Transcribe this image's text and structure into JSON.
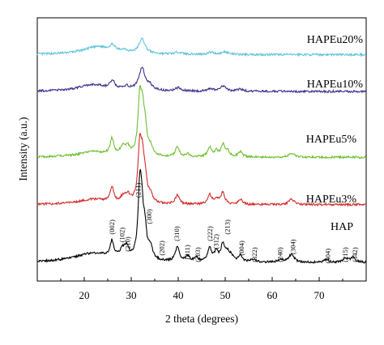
{
  "chart_data": {
    "type": "line",
    "title": "",
    "xlabel": "2 theta (degrees)",
    "ylabel": "Intensity (a.u.)",
    "xlim": [
      10,
      80
    ],
    "xticks": [
      20,
      30,
      40,
      50,
      60,
      70
    ],
    "ylim": [
      0,
      1
    ],
    "yticks_shown": false,
    "grid": false,
    "legend": "none (labels placed next to each trace)",
    "series": [
      {
        "name": "HAPEu20%",
        "color": "#5ec4d8",
        "offset": 0.84,
        "baseline": 0.02,
        "noise": 0.004,
        "peaks": [
          {
            "x": 23.0,
            "h": 0.03,
            "w": 4.0
          },
          {
            "x": 26.0,
            "h": 0.02,
            "w": 0.6
          },
          {
            "x": 28.5,
            "h": 0.01,
            "w": 0.8
          },
          {
            "x": 32.3,
            "h": 0.055,
            "w": 0.8
          },
          {
            "x": 40.0,
            "h": 0.008,
            "w": 0.8
          },
          {
            "x": 47.0,
            "h": 0.008,
            "w": 0.8
          },
          {
            "x": 50.0,
            "h": 0.01,
            "w": 0.8
          }
        ]
      },
      {
        "name": "HAPEu10%",
        "color": "#3b2f8c",
        "offset": 0.7,
        "baseline": 0.02,
        "noise": 0.004,
        "peaks": [
          {
            "x": 22.0,
            "h": 0.025,
            "w": 4.0
          },
          {
            "x": 26.0,
            "h": 0.03,
            "w": 0.6
          },
          {
            "x": 29.0,
            "h": 0.012,
            "w": 0.8
          },
          {
            "x": 32.3,
            "h": 0.085,
            "w": 0.8
          },
          {
            "x": 34.0,
            "h": 0.015,
            "w": 0.7
          },
          {
            "x": 40.0,
            "h": 0.012,
            "w": 0.7
          },
          {
            "x": 46.8,
            "h": 0.01,
            "w": 0.7
          },
          {
            "x": 49.6,
            "h": 0.02,
            "w": 0.7
          },
          {
            "x": 53.2,
            "h": 0.008,
            "w": 0.7
          }
        ]
      },
      {
        "name": "HAPEu5%",
        "color": "#6cc02e",
        "offset": 0.45,
        "baseline": 0.02,
        "noise": 0.004,
        "peaks": [
          {
            "x": 22.0,
            "h": 0.02,
            "w": 4.0
          },
          {
            "x": 25.9,
            "h": 0.06,
            "w": 0.45
          },
          {
            "x": 28.2,
            "h": 0.03,
            "w": 0.6
          },
          {
            "x": 29.2,
            "h": 0.03,
            "w": 0.6
          },
          {
            "x": 31.8,
            "h": 0.2,
            "w": 0.45
          },
          {
            "x": 32.4,
            "h": 0.14,
            "w": 0.45
          },
          {
            "x": 33.0,
            "h": 0.08,
            "w": 0.45
          },
          {
            "x": 34.1,
            "h": 0.03,
            "w": 0.5
          },
          {
            "x": 39.8,
            "h": 0.035,
            "w": 0.5
          },
          {
            "x": 42.0,
            "h": 0.01,
            "w": 0.5
          },
          {
            "x": 46.7,
            "h": 0.035,
            "w": 0.5
          },
          {
            "x": 48.1,
            "h": 0.02,
            "w": 0.5
          },
          {
            "x": 49.5,
            "h": 0.045,
            "w": 0.5
          },
          {
            "x": 50.5,
            "h": 0.02,
            "w": 0.5
          },
          {
            "x": 53.2,
            "h": 0.02,
            "w": 0.5
          },
          {
            "x": 64.1,
            "h": 0.015,
            "w": 0.7
          }
        ]
      },
      {
        "name": "HAPEu3%",
        "color": "#d42a2a",
        "offset": 0.27,
        "baseline": 0.02,
        "noise": 0.004,
        "peaks": [
          {
            "x": 22.0,
            "h": 0.02,
            "w": 4.0
          },
          {
            "x": 25.9,
            "h": 0.055,
            "w": 0.45
          },
          {
            "x": 28.2,
            "h": 0.02,
            "w": 0.6
          },
          {
            "x": 29.2,
            "h": 0.03,
            "w": 0.6
          },
          {
            "x": 31.8,
            "h": 0.2,
            "w": 0.45
          },
          {
            "x": 32.4,
            "h": 0.14,
            "w": 0.45
          },
          {
            "x": 33.0,
            "h": 0.07,
            "w": 0.45
          },
          {
            "x": 34.1,
            "h": 0.03,
            "w": 0.5
          },
          {
            "x": 39.8,
            "h": 0.035,
            "w": 0.5
          },
          {
            "x": 46.7,
            "h": 0.035,
            "w": 0.5
          },
          {
            "x": 48.1,
            "h": 0.02,
            "w": 0.5
          },
          {
            "x": 49.5,
            "h": 0.045,
            "w": 0.5
          },
          {
            "x": 53.2,
            "h": 0.02,
            "w": 0.5
          },
          {
            "x": 64.1,
            "h": 0.02,
            "w": 0.7
          }
        ]
      },
      {
        "name": "HAP",
        "color": "#000000",
        "offset": 0.05,
        "baseline": 0.02,
        "noise": 0.004,
        "peaks": [
          {
            "x": 22.0,
            "h": 0.035,
            "w": 5.0
          },
          {
            "x": 25.9,
            "h": 0.06,
            "w": 0.45
          },
          {
            "x": 28.1,
            "h": 0.03,
            "w": 0.6
          },
          {
            "x": 29.0,
            "h": 0.04,
            "w": 0.6
          },
          {
            "x": 31.8,
            "h": 0.23,
            "w": 0.45
          },
          {
            "x": 32.2,
            "h": 0.15,
            "w": 0.45
          },
          {
            "x": 32.9,
            "h": 0.1,
            "w": 0.45
          },
          {
            "x": 34.1,
            "h": 0.045,
            "w": 0.5
          },
          {
            "x": 39.8,
            "h": 0.055,
            "w": 0.5
          },
          {
            "x": 42.0,
            "h": 0.02,
            "w": 0.5
          },
          {
            "x": 43.8,
            "h": 0.015,
            "w": 0.5
          },
          {
            "x": 46.7,
            "h": 0.05,
            "w": 0.5
          },
          {
            "x": 48.1,
            "h": 0.035,
            "w": 0.5
          },
          {
            "x": 49.5,
            "h": 0.065,
            "w": 0.5
          },
          {
            "x": 50.5,
            "h": 0.03,
            "w": 0.5
          },
          {
            "x": 51.3,
            "h": 0.02,
            "w": 0.5
          },
          {
            "x": 53.2,
            "h": 0.025,
            "w": 0.5
          },
          {
            "x": 55.9,
            "h": 0.01,
            "w": 0.6
          },
          {
            "x": 61.7,
            "h": 0.01,
            "w": 0.6
          },
          {
            "x": 64.1,
            "h": 0.03,
            "w": 0.7
          },
          {
            "x": 71.5,
            "h": 0.01,
            "w": 0.6
          },
          {
            "x": 75.6,
            "h": 0.015,
            "w": 0.6
          },
          {
            "x": 77.2,
            "h": 0.02,
            "w": 0.6
          }
        ]
      }
    ],
    "peak_labels": [
      {
        "text": "(002)",
        "x": 26.0,
        "y": 0.205
      },
      {
        "text": "(102)",
        "x": 28.2,
        "y": 0.175
      },
      {
        "text": "(210)",
        "x": 29.4,
        "y": 0.14
      },
      {
        "text": "(211)",
        "x": 31.6,
        "y": 0.345
      },
      {
        "text": "(300)",
        "x": 34.0,
        "y": 0.245
      },
      {
        "text": "(202)",
        "x": 36.6,
        "y": 0.125
      },
      {
        "text": "(310)",
        "x": 39.8,
        "y": 0.18
      },
      {
        "text": "(311)",
        "x": 42.1,
        "y": 0.11
      },
      {
        "text": "(203)",
        "x": 44.3,
        "y": 0.1
      },
      {
        "text": "(222)",
        "x": 46.9,
        "y": 0.18
      },
      {
        "text": "(312)",
        "x": 48.2,
        "y": 0.15
      },
      {
        "text": "(213)",
        "x": 50.6,
        "y": 0.205
      },
      {
        "text": "(004)",
        "x": 53.6,
        "y": 0.125
      },
      {
        "text": "(322)",
        "x": 56.4,
        "y": 0.1
      },
      {
        "text": "(240)",
        "x": 61.8,
        "y": 0.1
      },
      {
        "text": "(304)",
        "x": 64.6,
        "y": 0.13
      },
      {
        "text": "(404)",
        "x": 72.0,
        "y": 0.095
      },
      {
        "text": "(215)",
        "x": 75.7,
        "y": 0.1
      },
      {
        "text": "(342)",
        "x": 77.8,
        "y": 0.1
      }
    ]
  }
}
